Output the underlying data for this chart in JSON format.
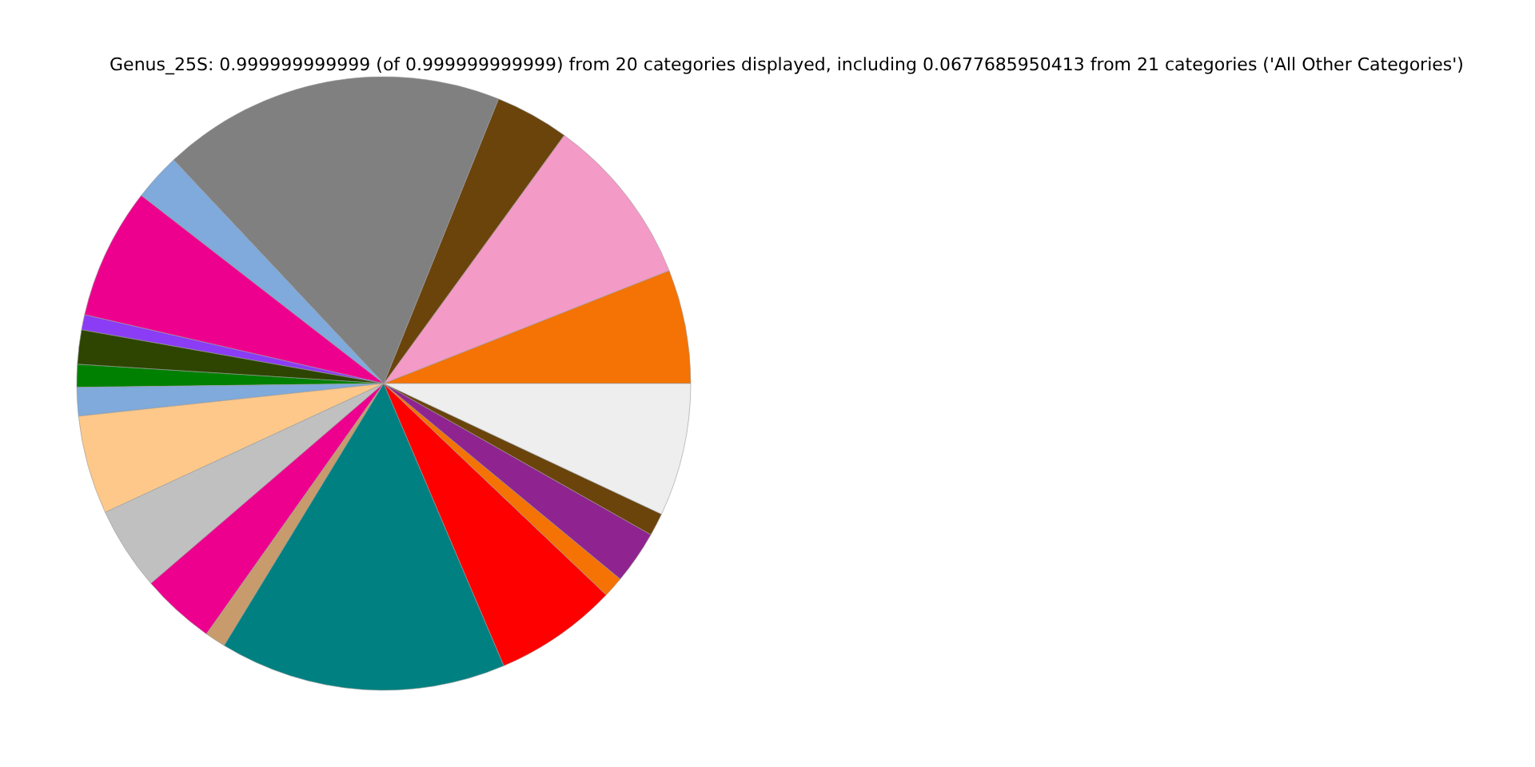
{
  "chart_data": {
    "type": "pie",
    "title": "Genus_25S: 0.999999999999 (of 0.999999999999) from 20 categories displayed, including 0.0677685950413 from 21 categories ('All Other Categories')",
    "categories": [
      null,
      null,
      null,
      null,
      null,
      null,
      null,
      null,
      null,
      null,
      null,
      null,
      null,
      null,
      null,
      null,
      null,
      null,
      null,
      null
    ],
    "values": [
      6.0,
      9.0,
      3.9,
      18.1,
      2.5,
      6.9,
      0.8,
      1.8,
      1.2,
      1.5,
      5.2,
      4.4,
      3.9,
      1.1,
      15.1,
      6.5,
      1.1,
      2.8,
      1.2,
      7.0
    ],
    "colors": [
      "#f47304",
      "#f49ac6",
      "#6b440c",
      "#808080",
      "#7faadb",
      "#ee008f",
      "#8b3cf5",
      "#2d4500",
      "#008000",
      "#7faadb",
      "#fdc88a",
      "#c0c0c0",
      "#ee008f",
      "#c89b6d",
      "#008080",
      "#ff0000",
      "#f47304",
      "#8f2490",
      "#6b440c",
      "#eeeeee"
    ]
  }
}
